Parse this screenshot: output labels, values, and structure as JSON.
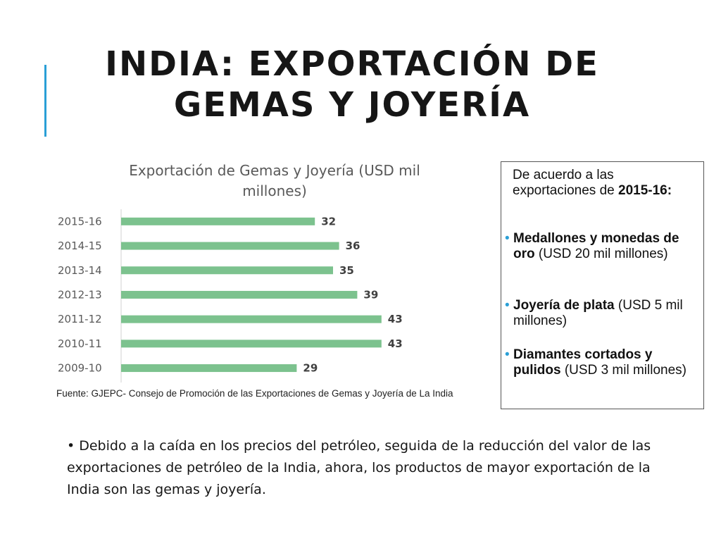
{
  "slide": {
    "title_line1": "INDIA: EXPORTACIÓN DE",
    "title_line2": "GEMAS Y JOYERÍA",
    "accent_color": "#2a9fd6"
  },
  "chart_data": {
    "type": "bar",
    "orientation": "horizontal",
    "title_line1": "Exportación de Gemas y Joyería (USD mil",
    "title_line2": "millones)",
    "categories": [
      "2015-16",
      "2014-15",
      "2013-14",
      "2012-13",
      "2011-12",
      "2010-11",
      "2009-10"
    ],
    "values": [
      32,
      36,
      35,
      39,
      43,
      43,
      29
    ],
    "data_labels": [
      "32",
      "36",
      "35",
      "39",
      "43",
      "43",
      "29"
    ],
    "bar_color": "#7cc28e",
    "xlim": [
      0,
      50
    ],
    "grid": false,
    "legend": "none"
  },
  "source_note": "Fuente: GJEPC- Consejo de Promoción de las Exportaciones de Gemas y Joyería de La India",
  "info_box": {
    "intro_plain": "De acuerdo a las exportaciones de ",
    "intro_bold": "2015-16:",
    "items": [
      {
        "bold": "Medallones y monedas de oro",
        "rest": " (USD 20 mil millones)"
      },
      {
        "bold": "Joyería de plata",
        "rest": " (USD 5 mil millones)"
      },
      {
        "bold": "Diamantes cortados y pulidos",
        "rest": " (USD 3 mil millones)"
      }
    ],
    "bullet_char": "•"
  },
  "bottom": {
    "bullet_char": "•",
    "text": "Debido a la caída en los precios del petróleo,  seguida de la reducción del valor de las exportaciones de petróleo de la India, ahora, los productos de mayor exportación de la India son las gemas y joyería."
  }
}
